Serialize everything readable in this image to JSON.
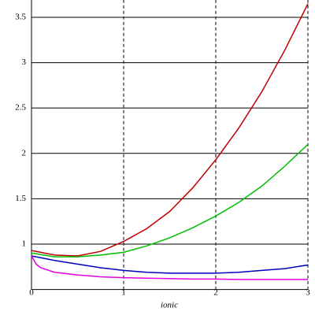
{
  "chart_data": {
    "type": "line",
    "x_label": "ionic",
    "x": [
      0,
      0.05,
      0.1,
      0.25,
      0.5,
      0.75,
      1,
      1.25,
      1.5,
      1.75,
      2,
      2.25,
      2.5,
      2.75,
      3
    ],
    "series": [
      {
        "color": "#c00000",
        "values": [
          0.93,
          0.92,
          0.91,
          0.88,
          0.87,
          0.92,
          1.03,
          1.17,
          1.36,
          1.62,
          1.93,
          2.28,
          2.68,
          3.14,
          3.65
        ]
      },
      {
        "color": "#00c000",
        "values": [
          0.9,
          0.895,
          0.885,
          0.86,
          0.86,
          0.88,
          0.91,
          0.98,
          1.07,
          1.18,
          1.31,
          1.46,
          1.64,
          1.86,
          2.1
        ]
      },
      {
        "color": "#0000c0",
        "values": [
          0.87,
          0.86,
          0.85,
          0.82,
          0.78,
          0.74,
          0.71,
          0.69,
          0.68,
          0.68,
          0.68,
          0.69,
          0.71,
          0.73,
          0.77
        ]
      },
      {
        "color": "#e000e0",
        "values": [
          0.87,
          0.78,
          0.74,
          0.69,
          0.66,
          0.64,
          0.63,
          0.625,
          0.62,
          0.615,
          0.615,
          0.61,
          0.61,
          0.61,
          0.61
        ]
      }
    ],
    "xlim": [
      0,
      3
    ],
    "xticks": [
      0,
      1,
      2,
      3
    ],
    "ylim": [
      0.5,
      3.65
    ],
    "yticks": [
      1,
      1.5,
      2,
      2.5,
      3,
      3.5
    ],
    "grid": true
  }
}
